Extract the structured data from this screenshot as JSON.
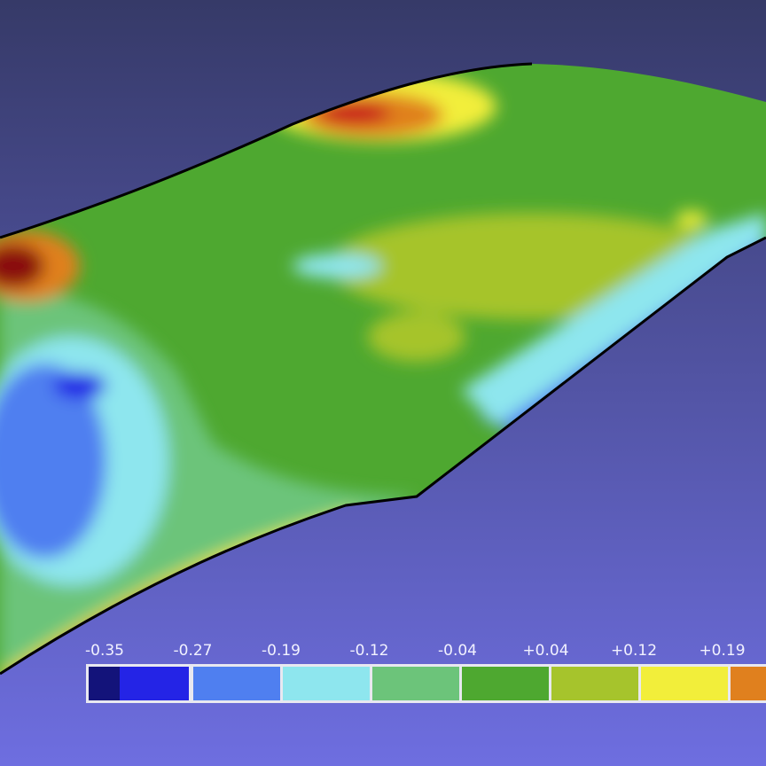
{
  "legend": {
    "ticks": [
      "-0.35",
      "-0.27",
      "-0.19",
      "-0.12",
      "-0.04",
      "+0.04",
      "+0.12",
      "+0.19"
    ],
    "colors": [
      "#13137a",
      "#2424e6",
      "#4f7ff0",
      "#8ee6ee",
      "#6cc47a",
      "#4ea830",
      "#a6c42c",
      "#f2ee3a",
      "#e0801e"
    ]
  }
}
